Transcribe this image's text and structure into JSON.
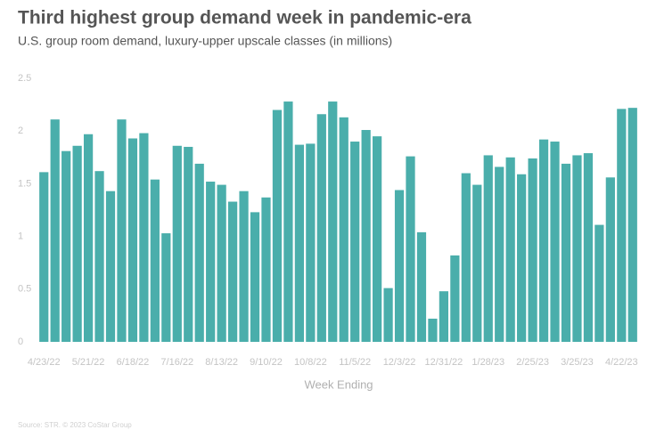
{
  "chart_data": {
    "type": "bar",
    "title": "Third highest group demand week in pandemic-era",
    "subtitle": "U.S. group room demand, luxury-upper upscale classes (in millions)",
    "x_label": "Week Ending",
    "source": "Source: STR. © 2023 CoStar Group",
    "categories": [
      "4/23/22",
      null,
      null,
      null,
      "5/21/22",
      null,
      null,
      null,
      "6/18/22",
      null,
      null,
      null,
      "7/16/22",
      null,
      null,
      null,
      "8/13/22",
      null,
      null,
      null,
      "9/10/22",
      null,
      null,
      null,
      "10/8/22",
      null,
      null,
      null,
      "11/5/22",
      null,
      null,
      null,
      "12/3/22",
      null,
      null,
      null,
      "12/31/22",
      null,
      null,
      null,
      "1/28/23",
      null,
      null,
      null,
      "2/25/23",
      null,
      null,
      null,
      "3/25/23",
      null,
      null,
      null,
      "4/22/23",
      null
    ],
    "values": [
      1.61,
      2.11,
      1.81,
      1.86,
      1.97,
      1.62,
      1.43,
      2.11,
      1.93,
      1.98,
      1.54,
      1.03,
      1.86,
      1.85,
      1.69,
      1.52,
      1.49,
      1.33,
      1.43,
      1.23,
      1.37,
      2.2,
      2.28,
      1.87,
      1.88,
      2.16,
      2.28,
      2.13,
      1.9,
      2.01,
      1.95,
      0.51,
      1.44,
      1.76,
      1.04,
      0.22,
      0.48,
      0.82,
      1.6,
      1.49,
      1.77,
      1.66,
      1.75,
      1.59,
      1.74,
      1.92,
      1.9,
      1.69,
      1.77,
      1.79,
      1.11,
      1.56,
      2.21,
      2.22
    ],
    "color": "#4aaeab",
    "ylim": [
      0,
      2.5
    ],
    "yticks": [
      0,
      0.5,
      1,
      1.5,
      2,
      2.5
    ],
    "grid": false
  }
}
